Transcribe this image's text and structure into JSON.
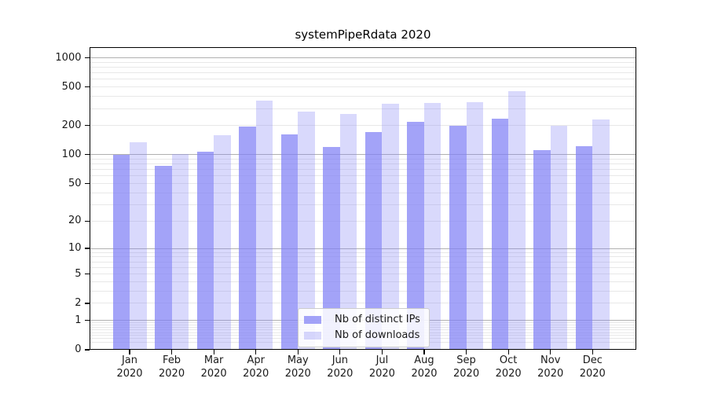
{
  "title": "systemPipeRdata 2020",
  "chart_data": {
    "type": "bar",
    "categories": [
      "Jan 2020",
      "Feb 2020",
      "Mar 2020",
      "Apr 2020",
      "May 2020",
      "Jun 2020",
      "Jul 2020",
      "Aug 2020",
      "Sep 2020",
      "Oct 2020",
      "Nov 2020",
      "Dec 2020"
    ],
    "series": [
      {
        "name": "Nb of distinct IPs",
        "color_hex": "#a3a3f8",
        "color": "rgba(128,128,245,0.72)",
        "values": [
          100,
          76,
          108,
          197,
          162,
          120,
          172,
          218,
          198,
          237,
          112,
          123
        ]
      },
      {
        "name": "Nb of downloads",
        "color_hex": "#d7d7fb",
        "color": "rgba(128,128,245,0.30)",
        "values": [
          135,
          101,
          160,
          360,
          277,
          262,
          335,
          340,
          350,
          452,
          200,
          233
        ]
      }
    ],
    "title": "systemPipeRdata 2020",
    "xlabel": "",
    "ylabel": "",
    "yscale": "log10(value+1)",
    "y_ticks": [
      0,
      1,
      2,
      5,
      10,
      20,
      50,
      100,
      200,
      500,
      1000
    ],
    "ylim": [
      0,
      1300
    ],
    "grid": "both",
    "legend_position": "lower-center"
  },
  "colors": {
    "grid_major": "#b0b0b0",
    "grid_minor": "#e8e8e8",
    "spine": "#000000",
    "text": "#1a1a1a",
    "background": "#ffffff",
    "legend_bg": "rgba(255,255,255,0.85)",
    "legend_border": "#cccccc"
  }
}
